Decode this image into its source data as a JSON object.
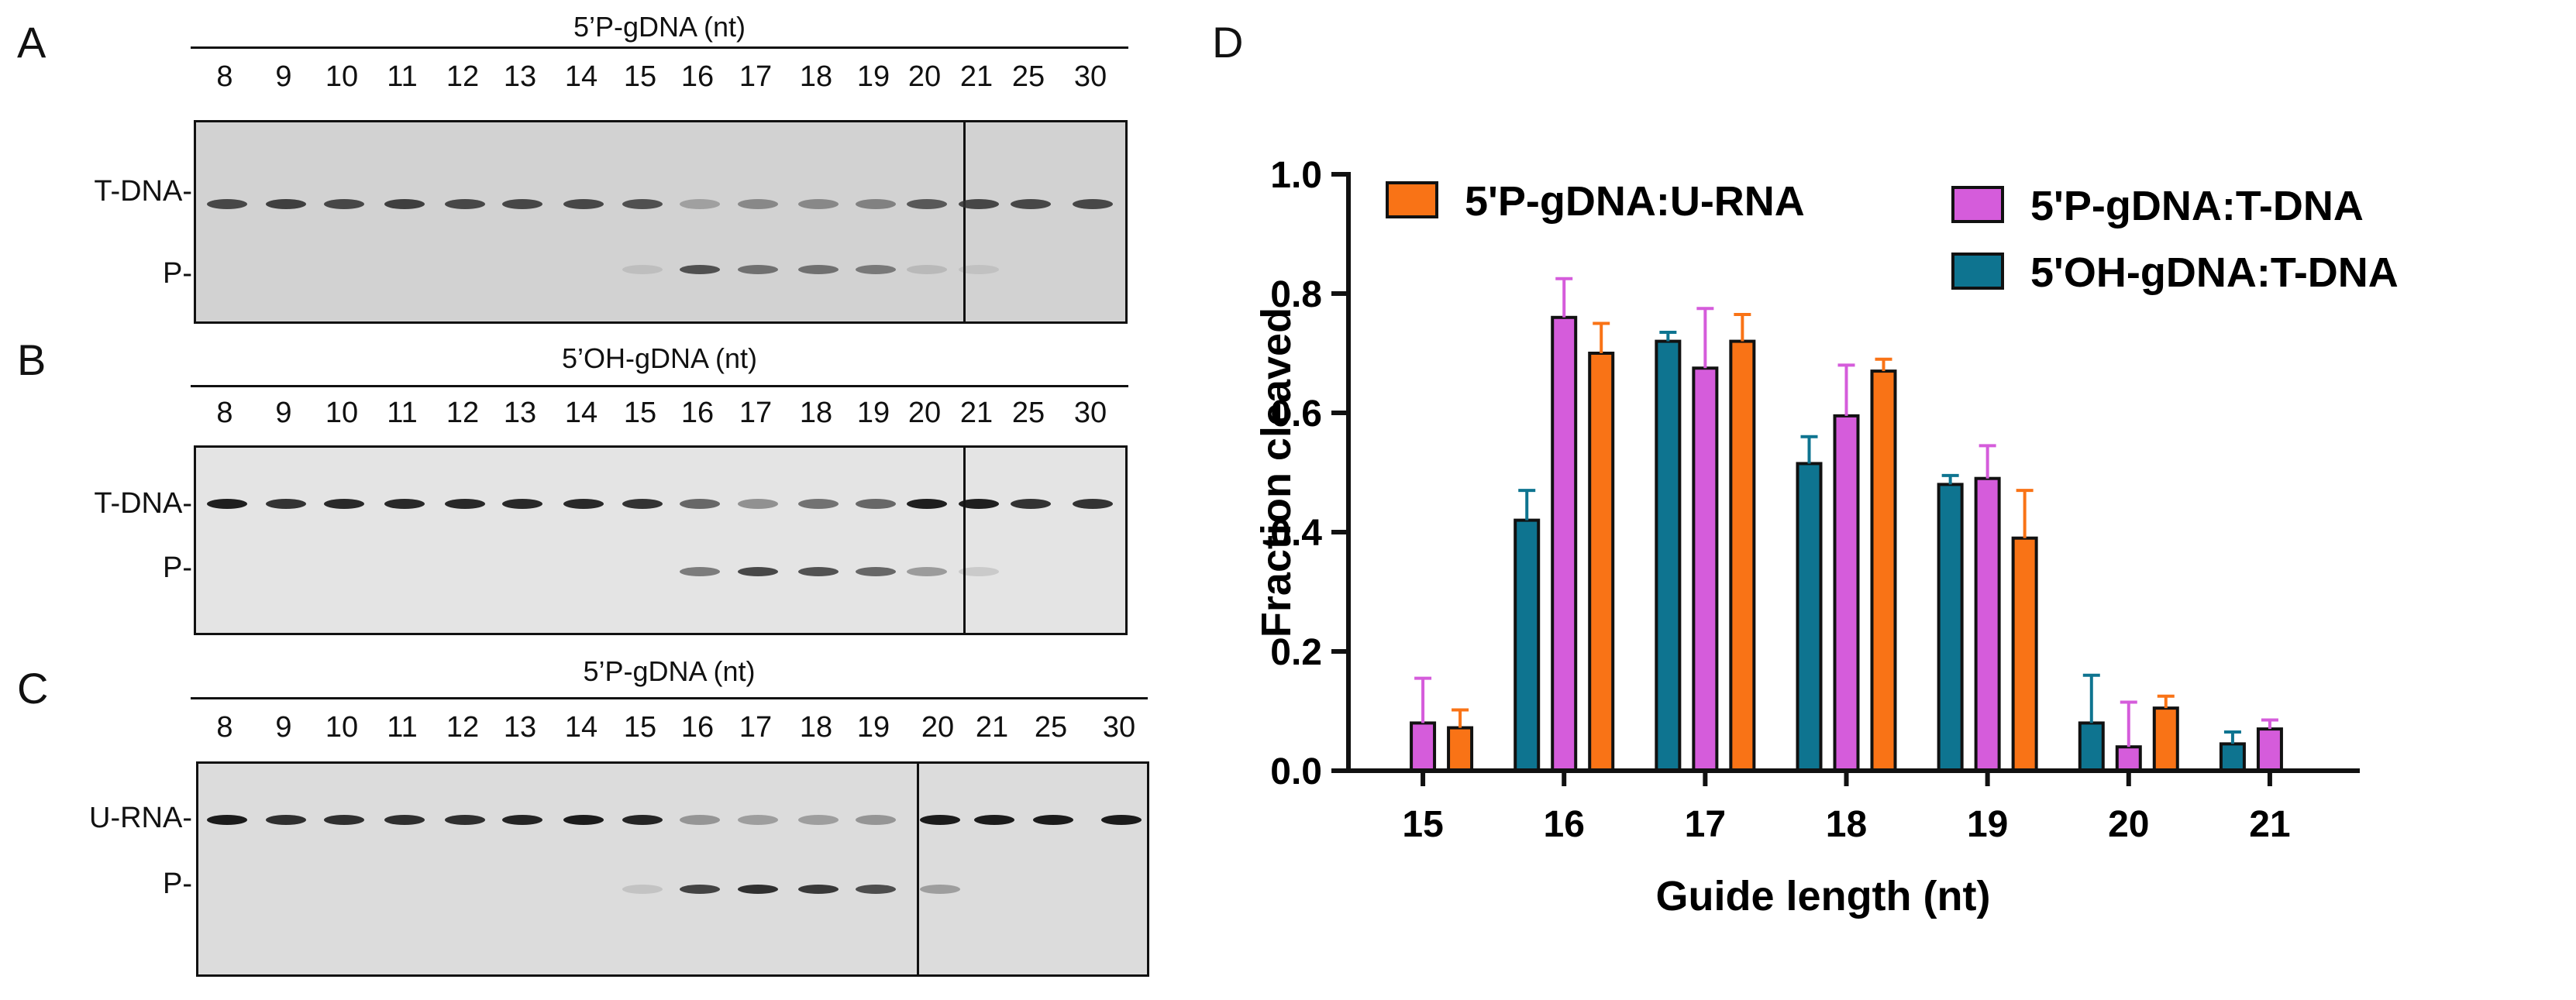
{
  "panels": {
    "A": {
      "letter": "A",
      "title": "5’P-gDNA (nt)",
      "lanes": [
        "8",
        "9",
        "10",
        "11",
        "12",
        "13",
        "14",
        "15",
        "16",
        "17",
        "18",
        "19",
        "20",
        "21",
        "25",
        "30"
      ],
      "band_labels": {
        "top": "T-DNA-",
        "product": "P-"
      }
    },
    "B": {
      "letter": "B",
      "title": "5’OH-gDNA (nt)",
      "lanes": [
        "8",
        "9",
        "10",
        "11",
        "12",
        "13",
        "14",
        "15",
        "16",
        "17",
        "18",
        "19",
        "20",
        "21",
        "25",
        "30"
      ],
      "band_labels": {
        "top": "T-DNA-",
        "product": "P-"
      }
    },
    "C": {
      "letter": "C",
      "title": "5’P-gDNA (nt)",
      "lanes": [
        "8",
        "9",
        "10",
        "11",
        "12",
        "13",
        "14",
        "15",
        "16",
        "17",
        "18",
        "19",
        "20",
        "21",
        "25",
        "30"
      ],
      "band_labels": {
        "top": "U-RNA-",
        "product": "P-"
      }
    },
    "D": {
      "letter": "D"
    }
  },
  "chart_data": {
    "type": "bar",
    "title": "",
    "xlabel": "Guide length (nt)",
    "ylabel": "Fraction cleaved",
    "ylim": [
      0,
      1.0
    ],
    "yticks": [
      "0.0",
      "0.2",
      "0.4",
      "0.6",
      "0.8",
      "1.0"
    ],
    "categories": [
      "15",
      "16",
      "17",
      "18",
      "19",
      "20",
      "21"
    ],
    "series": [
      {
        "name": "5'OH-gDNA:T-DNA",
        "color": "#0e7490",
        "values": [
          null,
          0.42,
          0.72,
          0.515,
          0.48,
          0.08,
          0.045
        ],
        "errors": [
          null,
          0.05,
          0.015,
          0.045,
          0.015,
          0.08,
          0.02
        ]
      },
      {
        "name": "5'P-gDNA:T-DNA",
        "color": "#d55cdb",
        "values": [
          0.08,
          0.76,
          0.675,
          0.595,
          0.49,
          0.04,
          0.07
        ],
        "errors": [
          0.075,
          0.065,
          0.1,
          0.085,
          0.055,
          0.075,
          0.015
        ]
      },
      {
        "name": "5'P-gDNA:U-RNA",
        "color": "#f97316",
        "values": [
          0.072,
          0.7,
          0.72,
          0.67,
          0.39,
          0.105,
          null
        ],
        "errors": [
          0.03,
          0.05,
          0.045,
          0.02,
          0.08,
          0.02,
          null
        ]
      }
    ],
    "legend": [
      "5'P-gDNA:U-RNA",
      "5'P-gDNA:T-DNA",
      "5'OH-gDNA:T-DNA"
    ]
  }
}
